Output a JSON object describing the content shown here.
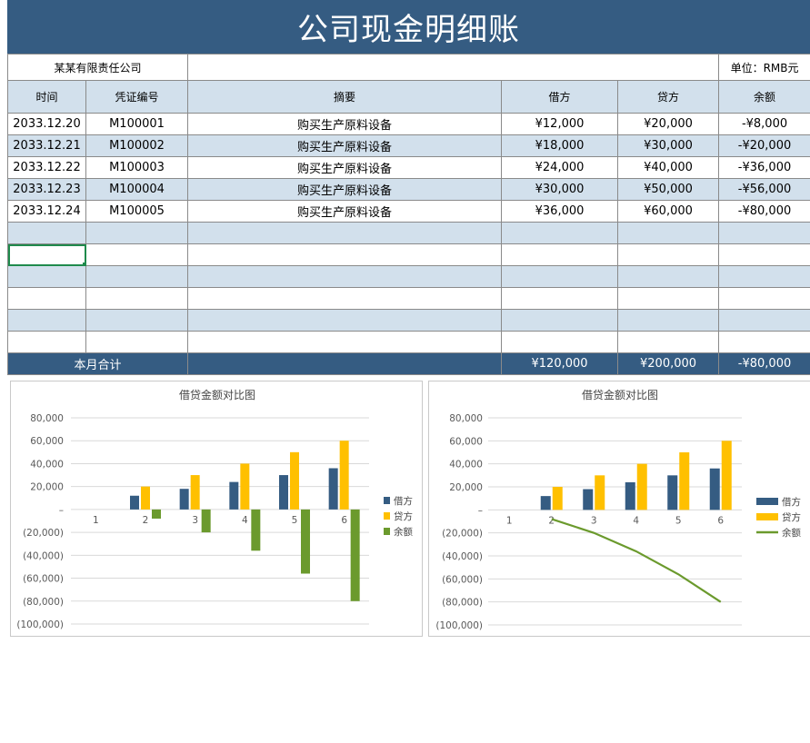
{
  "title": "公司现金明细账",
  "info": {
    "company": "某某有限责任公司",
    "unit": "单位：RMB元"
  },
  "headers": [
    "时间",
    "凭证编号",
    "摘要",
    "借方",
    "贷方",
    "余额"
  ],
  "rows": [
    [
      "2033.12.20",
      "M100001",
      "购买生产原料设备",
      "¥12,000",
      "¥20,000",
      "-¥8,000"
    ],
    [
      "2033.12.21",
      "M100002",
      "购买生产原料设备",
      "¥18,000",
      "¥30,000",
      "-¥20,000"
    ],
    [
      "2033.12.22",
      "M100003",
      "购买生产原料设备",
      "¥24,000",
      "¥40,000",
      "-¥36,000"
    ],
    [
      "2033.12.23",
      "M100004",
      "购买生产原料设备",
      "¥30,000",
      "¥50,000",
      "-¥56,000"
    ],
    [
      "2033.12.24",
      "M100005",
      "购买生产原料设备",
      "¥36,000",
      "¥60,000",
      "-¥80,000"
    ]
  ],
  "total": {
    "label": "本月合计",
    "debit": "¥120,000",
    "credit": "¥200,000",
    "balance": "-¥80,000"
  },
  "colors": {
    "header_bar": "#355c82",
    "row_alt": "#d2e0ec",
    "debit": "#355c82",
    "credit": "#ffc000",
    "balance": "#6b9a2d",
    "selection": "#1f8a4c"
  },
  "chart_data": [
    {
      "type": "bar",
      "title": "借贷金额对比图",
      "categories": [
        "1",
        "2",
        "3",
        "4",
        "5",
        "6"
      ],
      "series": [
        {
          "name": "借方",
          "values": [
            null,
            12000,
            18000,
            24000,
            30000,
            36000
          ]
        },
        {
          "name": "贷方",
          "values": [
            null,
            20000,
            30000,
            40000,
            50000,
            60000
          ]
        },
        {
          "name": "余额",
          "values": [
            null,
            -8000,
            -20000,
            -36000,
            -56000,
            -80000
          ]
        }
      ],
      "ylim": [
        -100000,
        80000
      ],
      "yticks": [
        "80,000",
        "60,000",
        "40,000",
        "20,000",
        "–",
        "(20,000)",
        "(40,000)",
        "(60,000)",
        "(80,000)",
        "(100,000)"
      ],
      "legend": "right",
      "grid": true
    },
    {
      "type": "bar",
      "title": "借贷金额对比图",
      "categories": [
        "1",
        "2",
        "3",
        "4",
        "5",
        "6"
      ],
      "series": [
        {
          "name": "借方",
          "type": "bar",
          "values": [
            null,
            12000,
            18000,
            24000,
            30000,
            36000
          ]
        },
        {
          "name": "贷方",
          "type": "bar",
          "values": [
            null,
            20000,
            30000,
            40000,
            50000,
            60000
          ]
        },
        {
          "name": "余额",
          "type": "line",
          "values": [
            null,
            -8000,
            -20000,
            -36000,
            -56000,
            -80000
          ]
        }
      ],
      "ylim": [
        -100000,
        80000
      ],
      "yticks": [
        "80,000",
        "60,000",
        "40,000",
        "20,000",
        "–",
        "(20,000)",
        "(40,000)",
        "(60,000)",
        "(80,000)",
        "(100,000)"
      ],
      "legend": "right",
      "grid": true
    }
  ]
}
